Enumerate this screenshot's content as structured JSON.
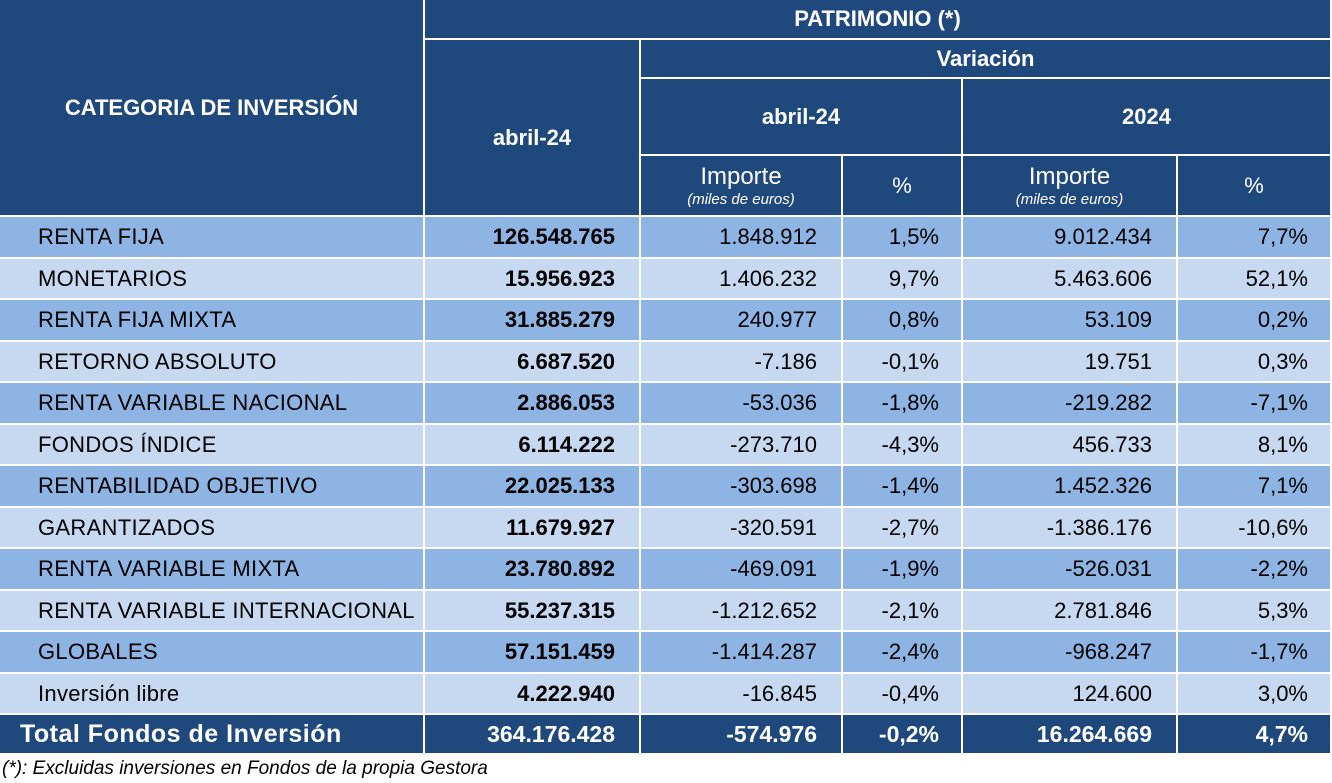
{
  "header": {
    "patrimonio": "PATRIMONIO (*)",
    "categoria": "CATEGORIA DE INVERSIÓN",
    "abril_total": "abril-24",
    "variacion": "Variación",
    "var_abril": "abril-24",
    "var_year": "2024",
    "importe": "Importe",
    "importe_unit": "(miles de euros)",
    "pct": "%"
  },
  "rows": [
    {
      "cat": "RENTA FIJA",
      "patrimonio": "126.548.765",
      "imp_mes": "1.848.912",
      "pct_mes": "1,5%",
      "imp_year": "9.012.434",
      "pct_year": "7,7%"
    },
    {
      "cat": "MONETARIOS",
      "patrimonio": "15.956.923",
      "imp_mes": "1.406.232",
      "pct_mes": "9,7%",
      "imp_year": "5.463.606",
      "pct_year": "52,1%"
    },
    {
      "cat": "RENTA FIJA MIXTA",
      "patrimonio": "31.885.279",
      "imp_mes": "240.977",
      "pct_mes": "0,8%",
      "imp_year": "53.109",
      "pct_year": "0,2%"
    },
    {
      "cat": "RETORNO ABSOLUTO",
      "patrimonio": "6.687.520",
      "imp_mes": "-7.186",
      "pct_mes": "-0,1%",
      "imp_year": "19.751",
      "pct_year": "0,3%"
    },
    {
      "cat": "RENTA VARIABLE NACIONAL",
      "patrimonio": "2.886.053",
      "imp_mes": "-53.036",
      "pct_mes": "-1,8%",
      "imp_year": "-219.282",
      "pct_year": "-7,1%"
    },
    {
      "cat": "FONDOS ÍNDICE",
      "patrimonio": "6.114.222",
      "imp_mes": "-273.710",
      "pct_mes": "-4,3%",
      "imp_year": "456.733",
      "pct_year": "8,1%"
    },
    {
      "cat": "RENTABILIDAD OBJETIVO",
      "patrimonio": "22.025.133",
      "imp_mes": "-303.698",
      "pct_mes": "-1,4%",
      "imp_year": "1.452.326",
      "pct_year": "7,1%"
    },
    {
      "cat": "GARANTIZADOS",
      "patrimonio": "11.679.927",
      "imp_mes": "-320.591",
      "pct_mes": "-2,7%",
      "imp_year": "-1.386.176",
      "pct_year": "-10,6%"
    },
    {
      "cat": "RENTA VARIABLE MIXTA",
      "patrimonio": "23.780.892",
      "imp_mes": "-469.091",
      "pct_mes": "-1,9%",
      "imp_year": "-526.031",
      "pct_year": "-2,2%"
    },
    {
      "cat": "RENTA VARIABLE INTERNACIONAL",
      "patrimonio": "55.237.315",
      "imp_mes": "-1.212.652",
      "pct_mes": "-2,1%",
      "imp_year": "2.781.846",
      "pct_year": "5,3%"
    },
    {
      "cat": "GLOBALES",
      "patrimonio": "57.151.459",
      "imp_mes": "-1.414.287",
      "pct_mes": "-2,4%",
      "imp_year": "-968.247",
      "pct_year": "-1,7%"
    },
    {
      "cat": "Inversión libre",
      "patrimonio": "4.222.940",
      "imp_mes": "-16.845",
      "pct_mes": "-0,4%",
      "imp_year": "124.600",
      "pct_year": "3,0%"
    }
  ],
  "total": {
    "cat": "Total Fondos de Inversión",
    "patrimonio": "364.176.428",
    "imp_mes": "-574.976",
    "pct_mes": "-0,2%",
    "imp_year": "16.264.669",
    "pct_year": "4,7%"
  },
  "footnote": "(*): Excluidas inversiones en Fondos de la propia Gestora",
  "colors": {
    "header": "#1f497d",
    "row_dark": "#8eb4e3",
    "row_light": "#c6d9f1"
  }
}
